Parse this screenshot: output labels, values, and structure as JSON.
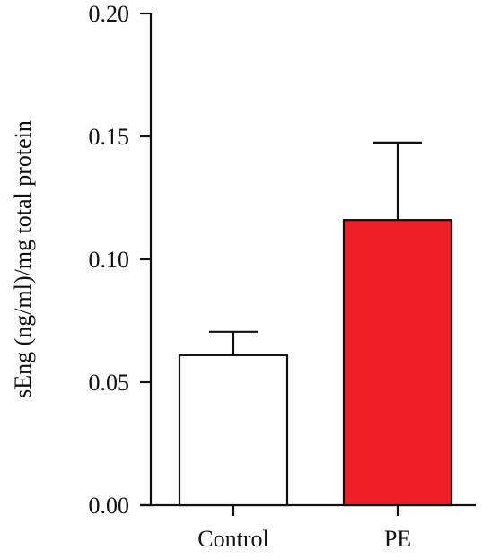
{
  "chart_data": {
    "type": "bar",
    "title": "",
    "xlabel": "",
    "ylabel": "sEng (ng/ml)/mg total protein",
    "ylim": [
      0,
      0.2
    ],
    "yticks": [
      "0.00",
      "0.05",
      "0.10",
      "0.15",
      "0.20"
    ],
    "categories": [
      "Control",
      "PE"
    ],
    "values": [
      0.061,
      0.116
    ],
    "errors": [
      0.0095,
      0.0315
    ],
    "colors": [
      "#ffffff",
      "#ee1f26"
    ],
    "grid": false,
    "legend": "none"
  }
}
